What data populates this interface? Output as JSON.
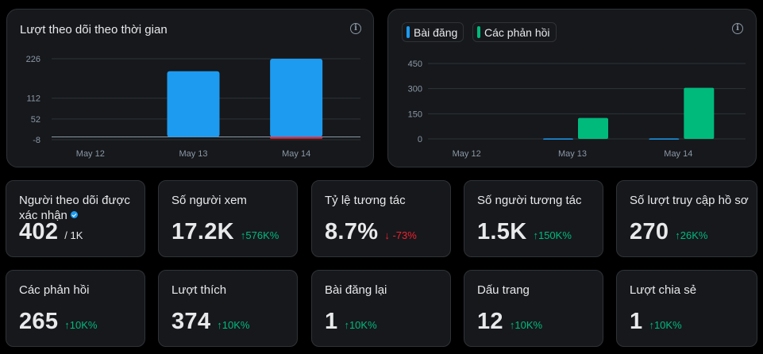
{
  "colors": {
    "accent_blue": "#1d9bf0",
    "accent_green": "#00ba7c",
    "negative_red": "#f4212e",
    "panel_bg": "#16181c",
    "border": "#2f3336"
  },
  "followers_chart": {
    "title": "Lượt theo dõi theo thời gian",
    "chart_data": {
      "type": "bar",
      "categories": [
        "May 12",
        "May 13",
        "May 14"
      ],
      "y_ticks": [
        "226",
        "112",
        "52",
        "-8"
      ],
      "ylim": [
        -8,
        226
      ],
      "series": [
        {
          "color": "#1d9bf0",
          "values": [
            0,
            190,
            226
          ]
        },
        {
          "color": "#f4212e",
          "values": [
            0,
            0,
            -5
          ]
        }
      ]
    }
  },
  "posts_chart": {
    "legend": [
      {
        "label": "Bài đăng",
        "color": "#1d9bf0"
      },
      {
        "label": "Các phản hồi",
        "color": "#00ba7c"
      }
    ],
    "chart_data": {
      "type": "bar",
      "categories": [
        "May 12",
        "May 13",
        "May 14"
      ],
      "y_ticks": [
        "450",
        "300",
        "150",
        "0"
      ],
      "ylim": [
        0,
        450
      ],
      "series": [
        {
          "name": "Bài đăng",
          "color": "#1d9bf0",
          "values": [
            0,
            3,
            3
          ]
        },
        {
          "name": "Các phản hồi",
          "color": "#00ba7c",
          "values": [
            0,
            125,
            305
          ]
        }
      ]
    }
  },
  "cards": [
    {
      "label": "Người theo dõi được xác nhận",
      "value": "402",
      "sub": "/ 1K",
      "delta": "",
      "direction": "",
      "verified": true
    },
    {
      "label": "Số người xem",
      "value": "17.2K",
      "sub": "",
      "delta": "576K%",
      "direction": "up"
    },
    {
      "label": "Tỷ lệ tương tác",
      "value": "8.7%",
      "sub": "",
      "delta": "-73%",
      "direction": "down"
    },
    {
      "label": "Số người tương tác",
      "value": "1.5K",
      "sub": "",
      "delta": "150K%",
      "direction": "up"
    },
    {
      "label": "Số lượt truy cập hồ sơ",
      "value": "270",
      "sub": "",
      "delta": "26K%",
      "direction": "up"
    },
    {
      "label": "Các phản hồi",
      "value": "265",
      "sub": "",
      "delta": "10K%",
      "direction": "up"
    },
    {
      "label": "Lượt thích",
      "value": "374",
      "sub": "",
      "delta": "10K%",
      "direction": "up"
    },
    {
      "label": "Bài đăng lại",
      "value": "1",
      "sub": "",
      "delta": "10K%",
      "direction": "up"
    },
    {
      "label": "Dấu trang",
      "value": "12",
      "sub": "",
      "delta": "10K%",
      "direction": "up"
    },
    {
      "label": "Lượt chia sẻ",
      "value": "1",
      "sub": "",
      "delta": "10K%",
      "direction": "up"
    }
  ]
}
